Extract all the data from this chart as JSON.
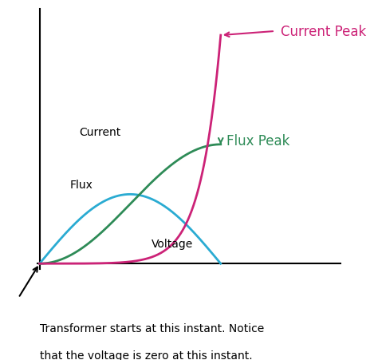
{
  "background_color": "#ffffff",
  "voltage_color": "#2aabd2",
  "flux_color": "#2e8b57",
  "current_color": "#cc2277",
  "current_peak_label": "Current Peak",
  "flux_peak_label": "Flux Peak",
  "current_label": "Current",
  "flux_label": "Flux",
  "voltage_label": "Voltage",
  "bottom_text_line1": "Transformer starts at this instant. Notice",
  "bottom_text_line2": "that the voltage is zero at this instant.",
  "current_peak_color": "#cc2277",
  "flux_peak_color": "#2e8b57",
  "arrow_color": "#cc2277",
  "arrow_flux_color": "#2e8b57"
}
